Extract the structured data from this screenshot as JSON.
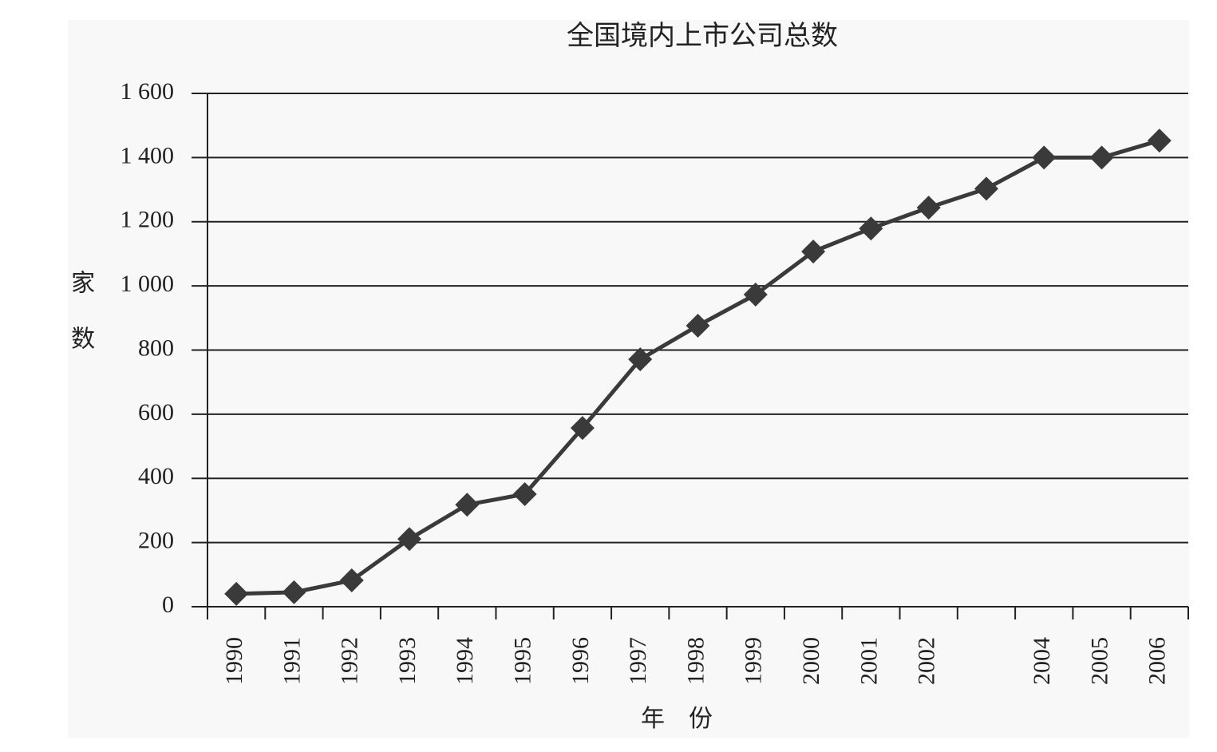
{
  "chart_data": {
    "type": "line",
    "title": "全国境内上市公司总数",
    "x_label": "年　份",
    "y_label": "家数",
    "categories": [
      "1990",
      "1991",
      "1992",
      "1993",
      "1994",
      "1995",
      "1996",
      "1997",
      "1998",
      "1999",
      "2000",
      "2001",
      "2002",
      null,
      "2004",
      "2005",
      "2006"
    ],
    "values": [
      40,
      45,
      82,
      211,
      318,
      351,
      557,
      771,
      876,
      973,
      1107,
      1179,
      1244,
      1303,
      1400,
      1400,
      1453
    ],
    "color": "#3a3a3a",
    "ylim": [
      0,
      1600
    ],
    "yticks": [
      0,
      200,
      400,
      600,
      800,
      {
        "value": 1000,
        "label": "1 000"
      },
      {
        "value": 1200,
        "label": "1 200"
      },
      {
        "value": 1400,
        "label": "1 400"
      },
      {
        "value": 1600,
        "label": "1 600"
      }
    ],
    "grid": true
  }
}
